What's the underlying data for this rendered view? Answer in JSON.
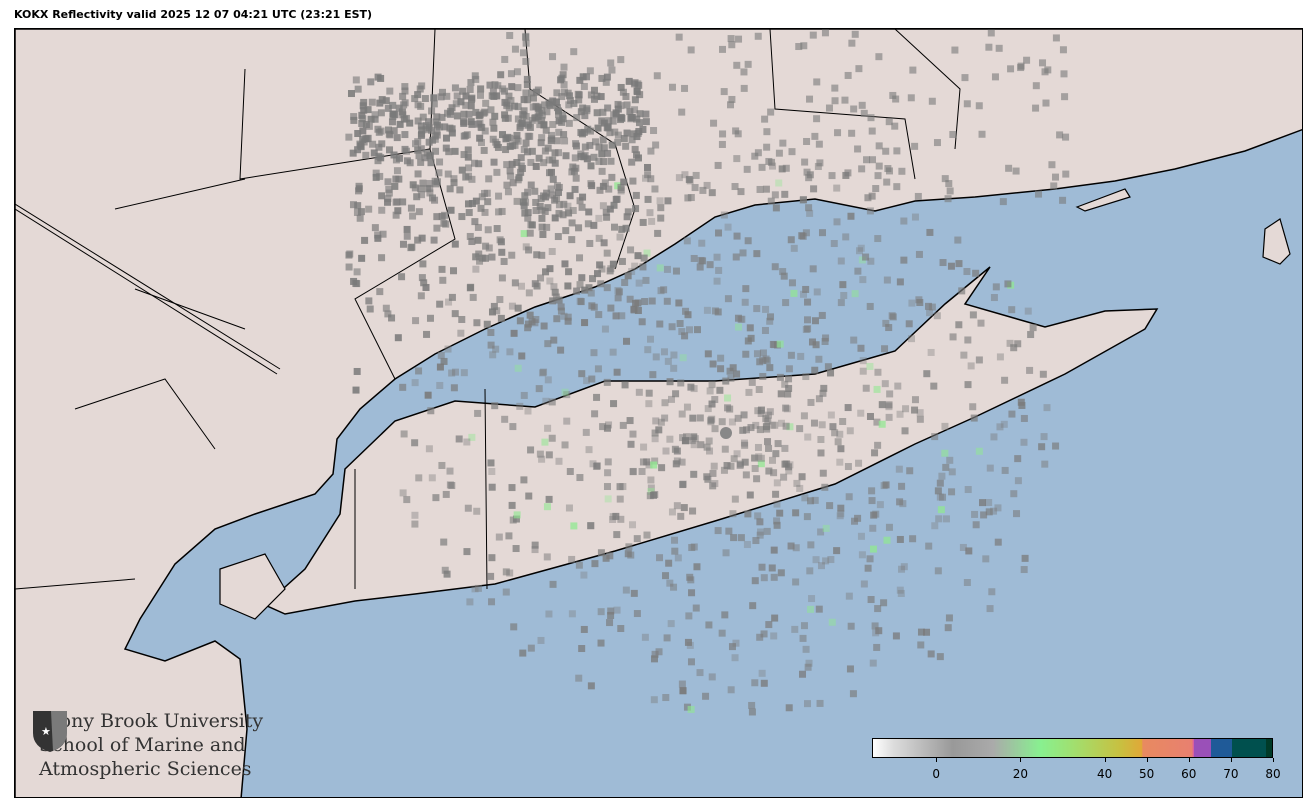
{
  "title": "KOKX Reflectivity valid 2025 12 07 04:21 UTC (23:21 EST)",
  "colors": {
    "water": "#9fbbd6",
    "land": "#e4d9d6",
    "border": "#000000",
    "echo": "#7a7a7a"
  },
  "logo": {
    "line1": "Stony Brook University",
    "line2": "School of Marine and",
    "line3": "Atmospheric Sciences"
  },
  "colorbar": {
    "units_range": [
      -15,
      80
    ],
    "ticks": [
      {
        "value": 0,
        "label": "0"
      },
      {
        "value": 20,
        "label": "20"
      },
      {
        "value": 40,
        "label": "40"
      },
      {
        "value": 50,
        "label": "50"
      },
      {
        "value": 60,
        "label": "60"
      },
      {
        "value": 70,
        "label": "70"
      },
      {
        "value": 80,
        "label": "80"
      }
    ]
  }
}
